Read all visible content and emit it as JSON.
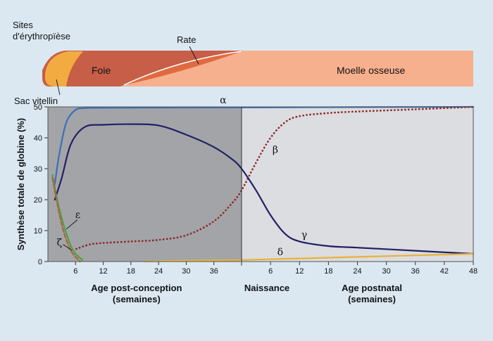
{
  "sites": {
    "title": "Sites\nd'érythropïèse",
    "yolk_sac": "Sac vitellin",
    "liver": "Foie",
    "spleen": "Rate",
    "marrow": "Moelle osseuse"
  },
  "colors": {
    "yolk_sac": "#f2ab40",
    "liver": "#c65e48",
    "spleen": "#e06a40",
    "marrow": "#f7b08e",
    "prenatal_bg": "#a2a4a8",
    "postnatal_bg": "#dcdde0",
    "alpha": "#3d6fb8",
    "beta": "#8b2424",
    "gamma": "#232064",
    "delta": "#e7b23c",
    "epsilon": "#47a33e",
    "zeta": "#b0603d"
  },
  "chart_data": {
    "type": "line",
    "ylabel": "Synthèse totale de globine (%)",
    "ylim": [
      0,
      50
    ],
    "yticks": [
      0,
      10,
      20,
      30,
      40,
      50
    ],
    "grid": false,
    "panels": [
      {
        "name": "prenatal",
        "xlabel": "Age post-conception\n(semaines)",
        "xlim": [
          0,
          42
        ],
        "xticks": [
          6,
          12,
          18,
          24,
          30,
          36
        ]
      },
      {
        "name": "postnatal",
        "xlabel": "Age postnatal\n(semaines)",
        "xlim": [
          0,
          48
        ],
        "xticks": [
          6,
          12,
          18,
          24,
          30,
          36,
          42,
          48
        ]
      }
    ],
    "boundary_label": "Naissance",
    "series": [
      {
        "name": "α",
        "style": "solid",
        "prenatal": [
          [
            1.5,
            25
          ],
          [
            2.5,
            35
          ],
          [
            4,
            45
          ],
          [
            6,
            49
          ],
          [
            8,
            49.6
          ],
          [
            12,
            49.7
          ],
          [
            42,
            49.8
          ]
        ],
        "postnatal": [
          [
            0,
            49.8
          ],
          [
            24,
            49.9
          ],
          [
            48,
            50
          ]
        ]
      },
      {
        "name": "β",
        "style": "dotted",
        "prenatal": [
          [
            6,
            4
          ],
          [
            9,
            5.5
          ],
          [
            12,
            6
          ],
          [
            18,
            6.5
          ],
          [
            24,
            7
          ],
          [
            30,
            8.5
          ],
          [
            36,
            13
          ],
          [
            40,
            19
          ],
          [
            42,
            23
          ]
        ],
        "postnatal": [
          [
            0,
            23
          ],
          [
            3,
            32
          ],
          [
            6,
            40
          ],
          [
            9,
            45
          ],
          [
            12,
            47
          ],
          [
            18,
            48
          ],
          [
            24,
            48.5
          ],
          [
            36,
            49.2
          ],
          [
            48,
            50
          ]
        ]
      },
      {
        "name": "γ",
        "style": "solid",
        "prenatal": [
          [
            1.5,
            20
          ],
          [
            3,
            27
          ],
          [
            5,
            38
          ],
          [
            8,
            43.5
          ],
          [
            12,
            44.2
          ],
          [
            18,
            44.4
          ],
          [
            24,
            44
          ],
          [
            30,
            41
          ],
          [
            36,
            37
          ],
          [
            40,
            33
          ],
          [
            42,
            30
          ]
        ],
        "postnatal": [
          [
            0,
            30
          ],
          [
            3,
            23
          ],
          [
            6,
            15
          ],
          [
            9,
            9
          ],
          [
            12,
            6.5
          ],
          [
            18,
            5
          ],
          [
            24,
            4.5
          ],
          [
            36,
            3.5
          ],
          [
            48,
            2.5
          ]
        ]
      },
      {
        "name": "δ",
        "style": "solid",
        "prenatal": [
          [
            21,
            0
          ],
          [
            30,
            0.3
          ],
          [
            42,
            0.5
          ]
        ],
        "postnatal": [
          [
            0,
            0.5
          ],
          [
            12,
            1
          ],
          [
            24,
            1.5
          ],
          [
            36,
            2
          ],
          [
            48,
            2.5
          ]
        ]
      },
      {
        "name": "ε",
        "style": "solid",
        "prenatal": [
          [
            1,
            28
          ],
          [
            2,
            20
          ],
          [
            3,
            14
          ],
          [
            4,
            9
          ],
          [
            5,
            5
          ],
          [
            6,
            2.5
          ],
          [
            7.5,
            0.5
          ]
        ]
      },
      {
        "name": "ζ",
        "style": "dashed",
        "prenatal": [
          [
            1,
            27
          ],
          [
            2,
            19
          ],
          [
            3,
            12
          ],
          [
            4,
            7
          ],
          [
            5,
            3.5
          ],
          [
            6,
            1.5
          ],
          [
            7,
            0
          ]
        ]
      }
    ],
    "series_labels": [
      {
        "name": "α",
        "panel": "prenatal",
        "x": 38,
        "y": 52
      },
      {
        "name": "β",
        "panel": "postnatal",
        "x": 7,
        "y": 36
      },
      {
        "name": "γ",
        "panel": "postnatal",
        "x": 13,
        "y": 8.5
      },
      {
        "name": "δ",
        "panel": "postnatal",
        "x": 8,
        "y": 3
      },
      {
        "name": "ε",
        "panel": "prenatal",
        "x": 6.5,
        "y": 15
      },
      {
        "name": "ζ",
        "panel": "prenatal",
        "x": 2.5,
        "y": 6
      }
    ]
  }
}
